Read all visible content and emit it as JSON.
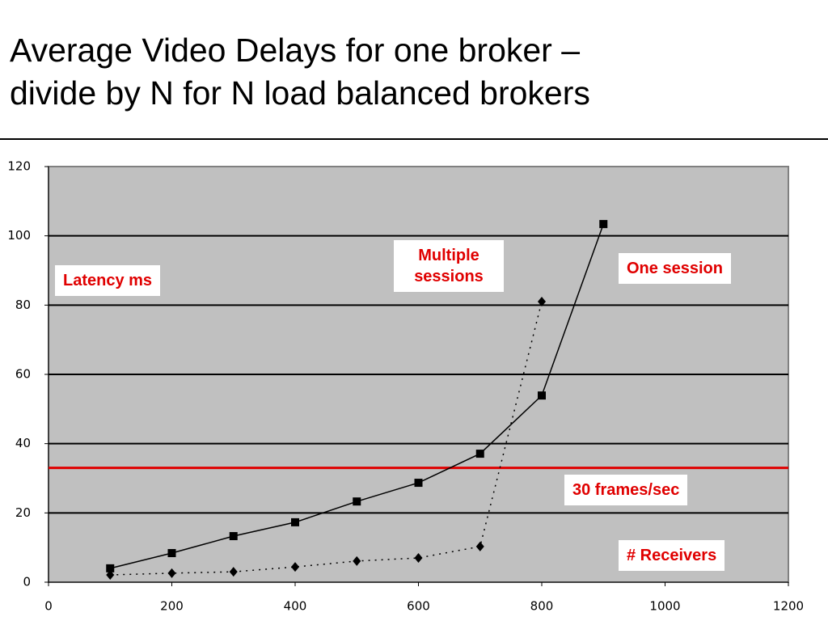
{
  "chart_data": {
    "type": "line",
    "title": [
      "Average Video Delays for one broker –",
      "divide by N for N load balanced brokers"
    ],
    "y_label": "Latency ms",
    "x_label": "# Receivers",
    "x": [
      100,
      200,
      300,
      400,
      500,
      600,
      700,
      800,
      900
    ],
    "series": [
      {
        "name": "One session",
        "color": "#000000",
        "style": "solid",
        "marker": "square",
        "values": [
          4.0,
          8.4,
          13.3,
          17.3,
          23.3,
          28.7,
          37.1,
          53.9,
          103.4
        ]
      },
      {
        "name": "Multiple sessions",
        "color": "#000000",
        "style": "dotted",
        "marker": "diamond",
        "values": [
          2.1,
          2.6,
          3.0,
          4.4,
          6.1,
          7.0,
          10.3,
          81.0,
          null
        ]
      }
    ],
    "reference_lines": [
      {
        "value": 33,
        "label": "30 frames/sec",
        "color": "#e00000"
      }
    ],
    "xlim": [
      0,
      1200
    ],
    "xticks": [
      0,
      200,
      400,
      600,
      800,
      1000,
      1200
    ],
    "ylim": [
      0,
      120
    ],
    "yticks": [
      0,
      20,
      40,
      60,
      80,
      100,
      120
    ],
    "grid": true,
    "background": "#c0c0c0",
    "annotation_color": "#e00000"
  }
}
